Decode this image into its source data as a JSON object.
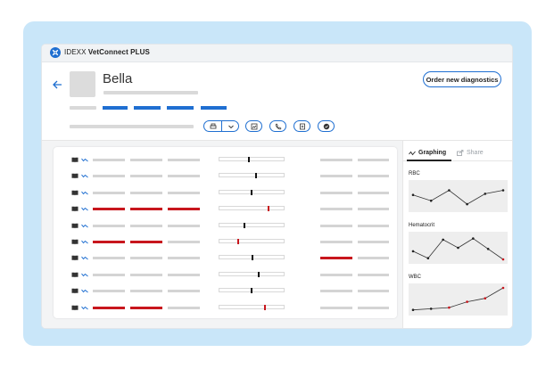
{
  "app": {
    "brand_prefix": "IDEXX",
    "brand_name": "VetConnect PLUS"
  },
  "patient": {
    "name": "Bella"
  },
  "header": {
    "order_button_label": "Order new diagnostics"
  },
  "toolbar": {
    "icons": [
      "print-icon",
      "chevron-down-icon",
      "chart-icon",
      "phone-icon",
      "add-document-icon",
      "check-circle-icon"
    ]
  },
  "panel": {
    "tabs": [
      {
        "label": "Graphing",
        "icon": "graph-icon",
        "active": true
      },
      {
        "label": "Share",
        "icon": "share-icon",
        "active": false
      }
    ],
    "graphs": [
      {
        "label": "RBC",
        "values": [
          0.55,
          0.3,
          0.75,
          0.15,
          0.6,
          0.75
        ],
        "highlighted": []
      },
      {
        "label": "Hematocrit",
        "values": [
          0.35,
          0.05,
          0.85,
          0.5,
          0.9,
          0.45,
          0.0
        ],
        "highlighted": [
          6
        ]
      },
      {
        "label": "WBC",
        "values": [
          0.05,
          0.1,
          0.15,
          0.4,
          0.55,
          1.0
        ],
        "highlighted": [
          2,
          3,
          4,
          5
        ]
      }
    ]
  },
  "colors": {
    "accent": "#1f6fd1",
    "alert": "#c8161d",
    "frame": "#c9e6f9"
  },
  "rows": [
    {
      "flags": [
        false,
        false,
        false,
        false
      ],
      "marker_pos": 0.45,
      "marker_alert": false
    },
    {
      "flags": [
        false,
        false,
        false,
        false
      ],
      "marker_pos": 0.55,
      "marker_alert": false
    },
    {
      "flags": [
        false,
        false,
        false,
        false
      ],
      "marker_pos": 0.48,
      "marker_alert": false
    },
    {
      "flags": [
        true,
        true,
        true,
        false
      ],
      "marker_pos": 0.75,
      "marker_alert": true
    },
    {
      "flags": [
        false,
        false,
        false,
        false
      ],
      "marker_pos": 0.38,
      "marker_alert": false
    },
    {
      "flags": [
        true,
        true,
        false,
        false
      ],
      "marker_pos": 0.28,
      "marker_alert": true
    },
    {
      "flags": [
        false,
        false,
        false,
        true
      ],
      "marker_pos": 0.5,
      "marker_alert": false
    },
    {
      "flags": [
        false,
        false,
        false,
        false
      ],
      "marker_pos": 0.6,
      "marker_alert": false
    },
    {
      "flags": [
        false,
        false,
        false,
        false
      ],
      "marker_pos": 0.48,
      "marker_alert": false
    },
    {
      "flags": [
        true,
        true,
        false,
        false
      ],
      "marker_pos": 0.7,
      "marker_alert": true
    }
  ]
}
